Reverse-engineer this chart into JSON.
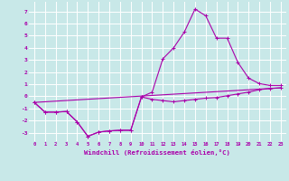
{
  "xlabel": "Windchill (Refroidissement éolien,°C)",
  "xlim": [
    -0.5,
    23.5
  ],
  "ylim": [
    -3.7,
    7.8
  ],
  "yticks": [
    -3,
    -2,
    -1,
    0,
    1,
    2,
    3,
    4,
    5,
    6,
    7
  ],
  "xticks": [
    0,
    1,
    2,
    3,
    4,
    5,
    6,
    7,
    8,
    9,
    10,
    11,
    12,
    13,
    14,
    15,
    16,
    17,
    18,
    19,
    20,
    21,
    22,
    23
  ],
  "bg_color": "#c8e8e8",
  "line_color": "#aa00aa",
  "grid_color": "#ffffff",
  "line1_x": [
    0,
    1,
    2,
    3,
    4,
    5,
    6,
    7,
    8,
    9,
    10,
    11,
    12,
    13,
    14,
    15,
    16,
    17,
    18,
    19,
    20,
    21,
    22,
    23
  ],
  "line1_y": [
    -0.5,
    -1.3,
    -1.3,
    -1.25,
    -2.1,
    -3.3,
    -2.95,
    -2.85,
    -2.8,
    -2.8,
    -0.05,
    0.35,
    3.1,
    4.0,
    5.3,
    7.2,
    6.65,
    4.8,
    4.8,
    2.8,
    1.5,
    1.05,
    0.9,
    0.9
  ],
  "line2_x": [
    0,
    1,
    2,
    3,
    4,
    5,
    6,
    7,
    8,
    9,
    10,
    11,
    12,
    13,
    14,
    15,
    16,
    17,
    18,
    19,
    20,
    21,
    22,
    23
  ],
  "line2_y": [
    -0.5,
    -1.3,
    -1.3,
    -1.25,
    -2.1,
    -3.3,
    -2.95,
    -2.85,
    -2.8,
    -2.8,
    -0.05,
    -0.25,
    -0.35,
    -0.45,
    -0.35,
    -0.25,
    -0.15,
    -0.1,
    0.05,
    0.2,
    0.35,
    0.55,
    0.65,
    0.7
  ],
  "line3_x": [
    0,
    23
  ],
  "line3_y": [
    -0.5,
    0.7
  ]
}
